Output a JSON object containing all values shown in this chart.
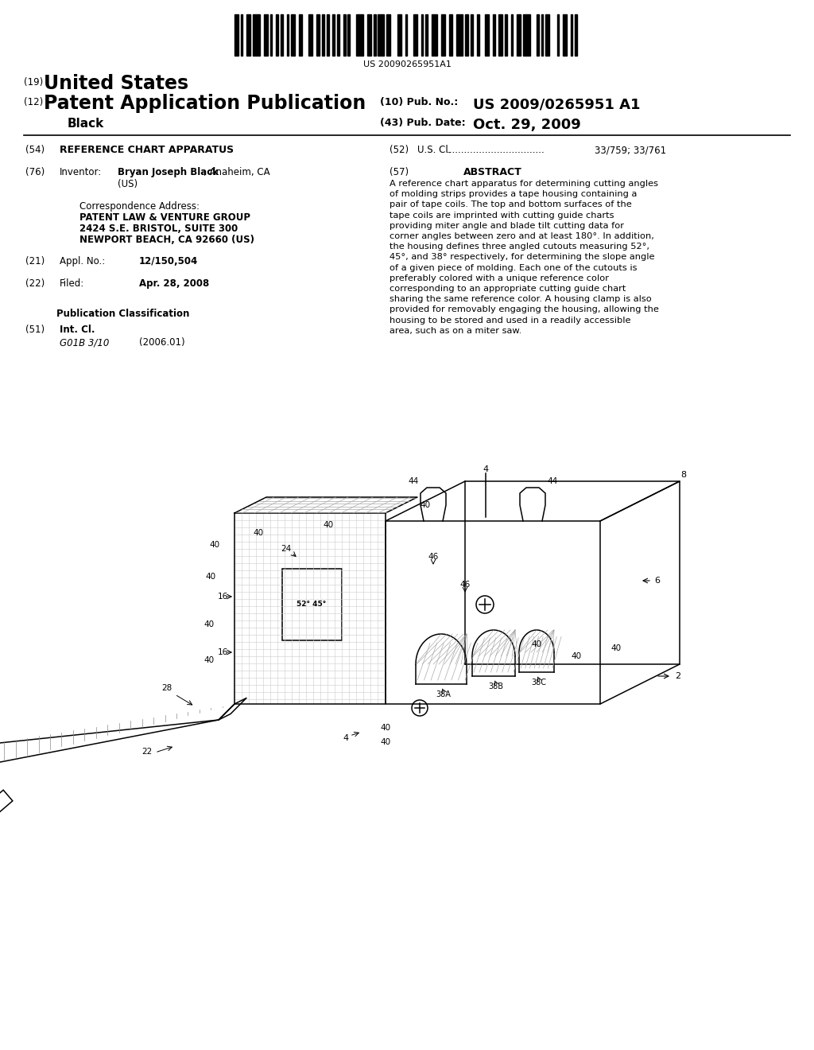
{
  "bg_color": "#ffffff",
  "barcode_text": "US 20090265951A1",
  "header_19": "(19)",
  "header_us": "United States",
  "header_12": "(12)",
  "header_pub": "Patent Application Publication",
  "header_inventor_last": "Black",
  "header_10_label": "(10) Pub. No.:",
  "header_10_value": "US 2009/0265951 A1",
  "header_43_label": "(43) Pub. Date:",
  "header_43_value": "Oct. 29, 2009",
  "field_54_label": "(54)",
  "field_54_title": "REFERENCE CHART APPARATUS",
  "field_52_label": "(52)",
  "field_52_title": "U.S. Cl.",
  "field_52_dots": ".................................",
  "field_52_value": "33/759; 33/761",
  "field_76_label": "(76)",
  "field_76_title": "Inventor:",
  "field_76_name": "Bryan Joseph Black",
  "field_76_city": ", Anaheim, CA",
  "field_76_country": "(US)",
  "corr_label": "Correspondence Address:",
  "corr_line1": "PATENT LAW & VENTURE GROUP",
  "corr_line2": "2424 S.E. BRISTOL, SUITE 300",
  "corr_line3": "NEWPORT BEACH, CA 92660 (US)",
  "field_21_label": "(21)",
  "field_21_title": "Appl. No.:",
  "field_21_value": "12/150,504",
  "field_22_label": "(22)",
  "field_22_title": "Filed:",
  "field_22_value": "Apr. 28, 2008",
  "pub_class_title": "Publication Classification",
  "field_51_label": "(51)",
  "field_51_title": "Int. Cl.",
  "field_51_class": "G01B 3/10",
  "field_51_year": "(2006.01)",
  "abstract_num": "(57)",
  "abstract_title": "ABSTRACT",
  "abstract_text": "A reference chart apparatus for determining cutting angles of molding strips provides a tape housing containing a pair of tape coils. The top and bottom surfaces of the tape coils are imprinted with cutting guide charts providing miter angle and blade tilt cutting data for corner angles between zero and at least 180°. In addition, the housing defines three angled cutouts measuring 52°, 45°, and 38° respectively, for determining the slope angle of a given piece of molding. Each one of the cutouts is preferably colored with a unique reference color corresponding to an appropriate cutting guide chart sharing the same reference color. A housing clamp is also provided for removably engaging the housing, allowing the housing to be stored and used in a readily accessible area, such as on a miter saw."
}
